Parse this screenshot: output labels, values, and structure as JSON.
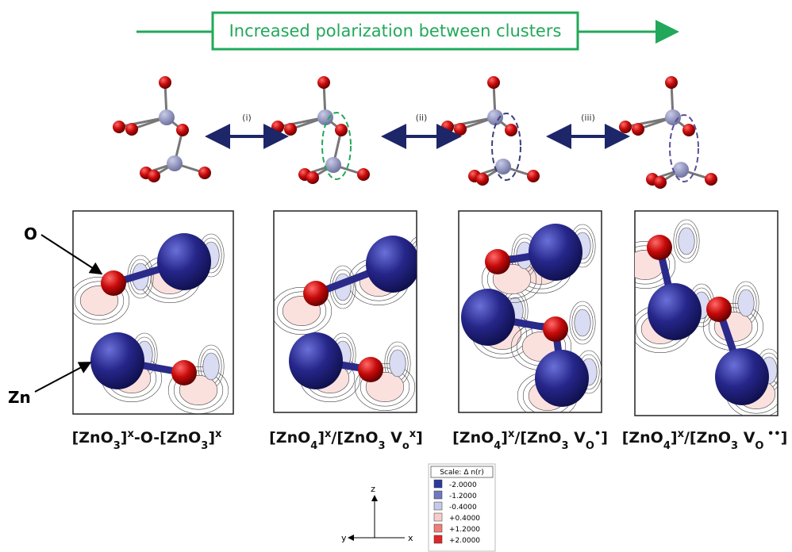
{
  "header": {
    "title": "Increased polarization between clusters"
  },
  "steps": [
    "(i)",
    "(ii)",
    "(iii)"
  ],
  "atom_labels": {
    "oxygen": "O",
    "zinc": "Zn"
  },
  "captions": [
    [
      "[ZnO",
      "3",
      "]",
      "x",
      "-O-[ZnO",
      "3",
      "]",
      "x"
    ],
    [
      "[ZnO",
      "4",
      "]",
      "x",
      "/[ZnO",
      "3",
      " V",
      "o",
      "x",
      "]"
    ],
    [
      "[ZnO",
      "4",
      "]",
      "x",
      "/[ZnO",
      "3",
      " V",
      "O",
      "•",
      "]"
    ],
    [
      "[ZnO",
      "4",
      "]",
      "x",
      "/[ZnO",
      "3",
      " V",
      "O",
      " ••",
      "]"
    ]
  ],
  "axes": {
    "z": "z",
    "y": "y",
    "x": "x"
  },
  "legend": {
    "title": "Scale:  Δ n(r)",
    "entries": [
      {
        "label": "-2.0000",
        "color": "#2a3a9c"
      },
      {
        "label": "-1.2000",
        "color": "#6e78c2"
      },
      {
        "label": "-0.4000",
        "color": "#c6cae8"
      },
      {
        "label": "+0.4000",
        "color": "#f7cdc9"
      },
      {
        "label": "+1.2000",
        "color": "#ef7f79"
      },
      {
        "label": "+2.0000",
        "color": "#e02626"
      }
    ]
  }
}
